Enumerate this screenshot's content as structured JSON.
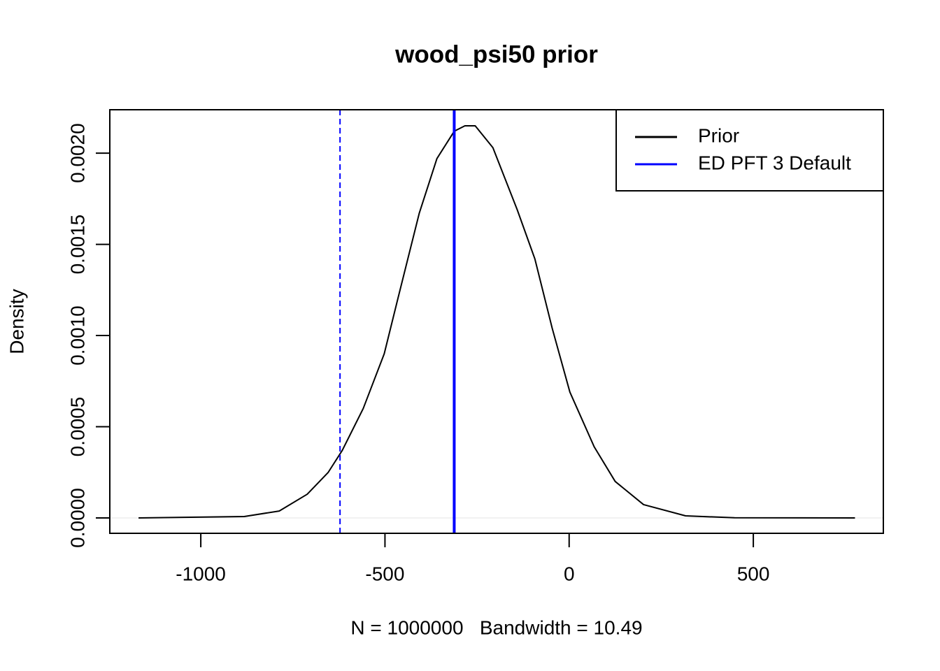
{
  "chart_data": {
    "type": "line",
    "title": "wood_psi50 prior",
    "xlabel": "N = 1000000   Bandwidth = 10.49",
    "ylabel": "Density",
    "x": [
      -1169,
      -882,
      -787,
      -711,
      -654,
      -616,
      -559,
      -502,
      -464,
      -407,
      -359,
      -312,
      -283,
      -255,
      -207,
      -141,
      -93,
      -46,
      2,
      68,
      125,
      202,
      316,
      449,
      776
    ],
    "series": [
      {
        "name": "Prior",
        "color": "#000000",
        "values": [
          0,
          7.7e-06,
          3.8e-05,
          0.00013,
          0.00025,
          0.00037,
          0.0006,
          0.0009,
          0.00121,
          0.00167,
          0.00197,
          0.00212,
          0.00215,
          0.00215,
          0.00203,
          0.00169,
          0.00142,
          0.00104,
          0.00069,
          0.00039,
          0.0002,
          7.3e-05,
          1.15e-05,
          8e-07,
          0
        ]
      }
    ],
    "vlines": [
      {
        "name": "ED PFT 3 Default",
        "x": -312,
        "color": "#0000ff",
        "style": "solid"
      },
      {
        "x": -622,
        "color": "#0000ff",
        "style": "dashed"
      }
    ],
    "xlim": [
      -1247,
      853
    ],
    "ylim": [
      -8.43e-05,
      0.002238
    ],
    "xticks": [
      -1000,
      -500,
      0,
      500
    ],
    "yticks": [
      {
        "value": 0,
        "label": "0.0000"
      },
      {
        "value": 0.0005,
        "label": "0.0005"
      },
      {
        "value": 0.001,
        "label": "0.0010"
      },
      {
        "value": 0.0015,
        "label": "0.0015"
      },
      {
        "value": 0.002,
        "label": "0.0020"
      }
    ],
    "legend": "top-right"
  }
}
